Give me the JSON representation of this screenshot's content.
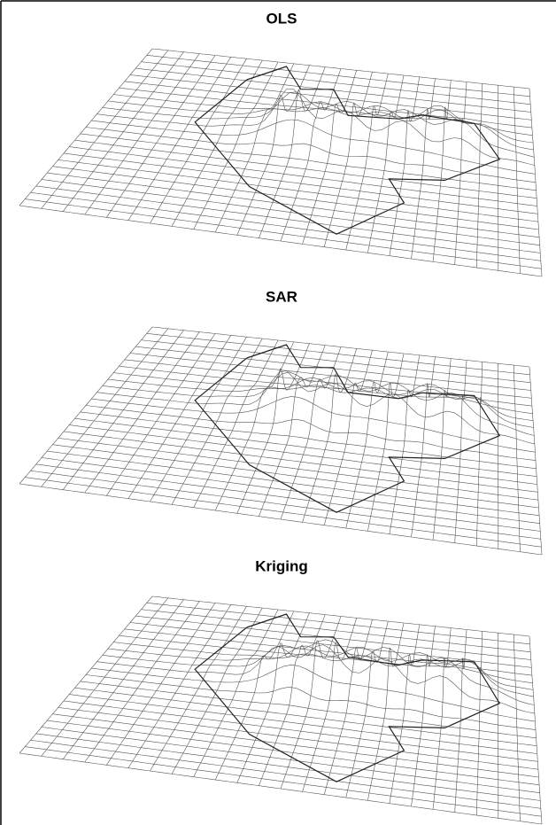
{
  "panels": [
    {
      "title": "OLS"
    },
    {
      "title": "SAR"
    },
    {
      "title": "Kriging"
    }
  ]
}
